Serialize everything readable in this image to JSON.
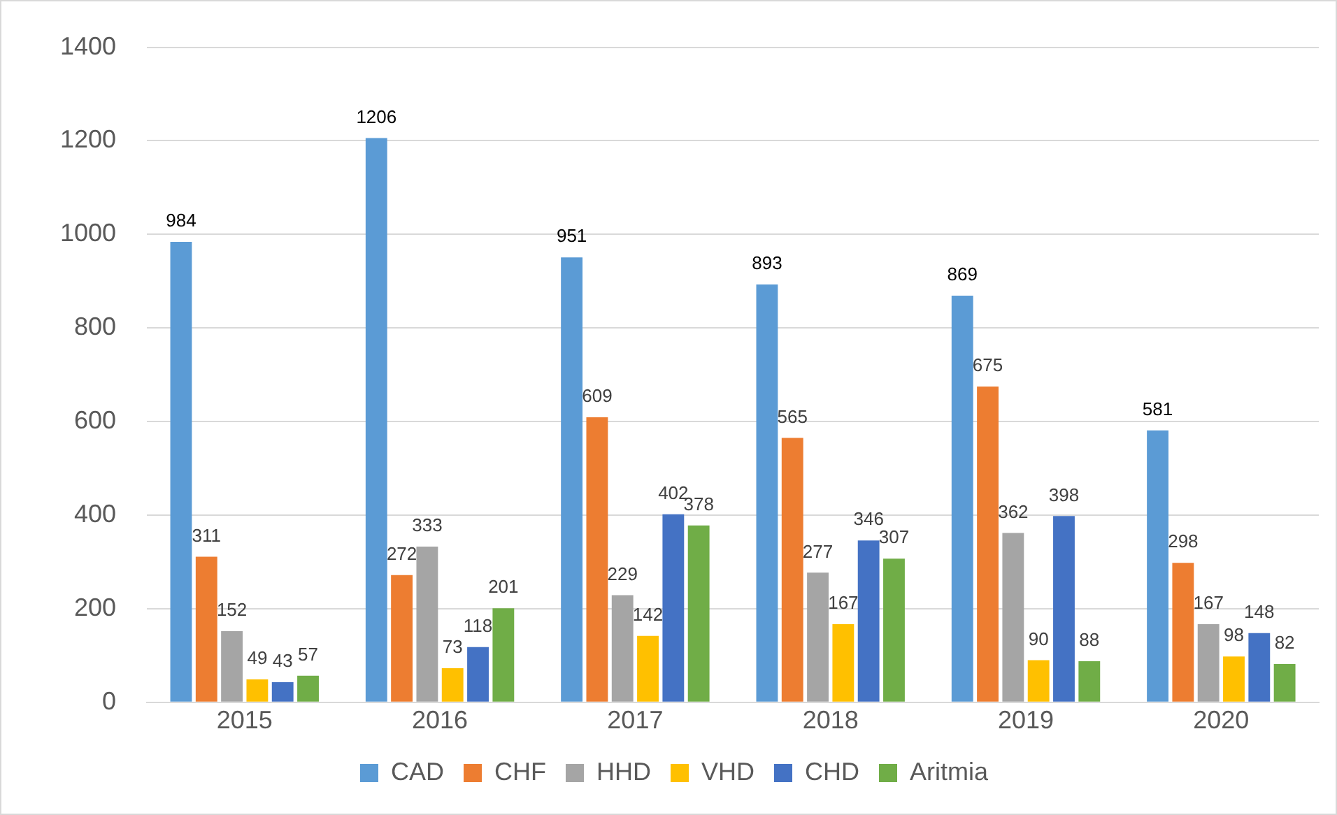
{
  "chart_data": {
    "type": "bar",
    "categories": [
      "2015",
      "2016",
      "2017",
      "2018",
      "2019",
      "2020"
    ],
    "series": [
      {
        "name": "CAD",
        "color": "#5b9bd5",
        "values": [
          984,
          1206,
          951,
          893,
          869,
          581
        ]
      },
      {
        "name": "CHF",
        "color": "#ed7d31",
        "values": [
          311,
          272,
          609,
          565,
          675,
          298
        ]
      },
      {
        "name": "HHD",
        "color": "#a5a5a5",
        "values": [
          152,
          333,
          229,
          277,
          362,
          167
        ]
      },
      {
        "name": "VHD",
        "color": "#ffc000",
        "values": [
          49,
          73,
          142,
          167,
          90,
          98
        ]
      },
      {
        "name": "CHD",
        "color": "#4472c4",
        "values": [
          43,
          118,
          402,
          346,
          398,
          148
        ]
      },
      {
        "name": "Aritmia",
        "color": "#70ad47",
        "values": [
          57,
          201,
          378,
          307,
          88,
          82
        ]
      }
    ],
    "ylim": [
      0,
      1400
    ],
    "yticks": [
      0,
      200,
      400,
      600,
      800,
      1000,
      1200,
      1400
    ],
    "grid": "y",
    "legend": "bottom",
    "data_labels": true
  }
}
